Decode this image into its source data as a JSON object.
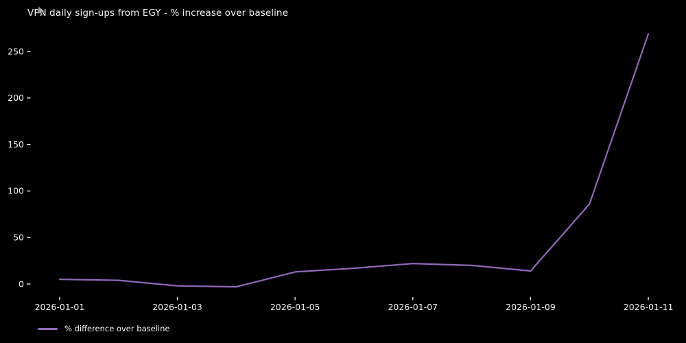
{
  "header": {
    "title": "VPN daily sign-ups from EGY - % increase over baseline"
  },
  "colors": {
    "background": "#000000",
    "text": "#f5f5f5",
    "tick": "#e8e8e8",
    "line": "#9467bd",
    "cursor": "#b8b8b8"
  },
  "chart_data": {
    "type": "line",
    "title": "VPN daily sign-ups from EGY - % increase over baseline",
    "x": [
      "2026-01-01",
      "2026-01-02",
      "2026-01-03",
      "2026-01-04",
      "2026-01-05",
      "2026-01-06",
      "2026-01-07",
      "2026-01-08",
      "2026-01-09",
      "2026-01-10",
      "2026-01-11"
    ],
    "series": [
      {
        "name": "% difference over baseline",
        "values": [
          5,
          4,
          -2,
          -3,
          13,
          17,
          22,
          20,
          14,
          86,
          269
        ]
      }
    ],
    "xlabel": "",
    "ylabel": "",
    "y_ticks": [
      0,
      50,
      100,
      150,
      200,
      250
    ],
    "x_tick_indices": [
      0,
      2,
      4,
      6,
      8,
      10
    ],
    "x_tick_labels": [
      "2026-01-01",
      "2026-01-03",
      "2026-01-05",
      "2026-01-07",
      "2026-01-09",
      "2026-01-11"
    ],
    "ylim": [
      -14,
      282.5
    ],
    "grid": false,
    "legend_position": "lower-left-below-axis",
    "line_color": "#9467bd",
    "background": "#000000",
    "text_color": "#f5f5f5"
  }
}
